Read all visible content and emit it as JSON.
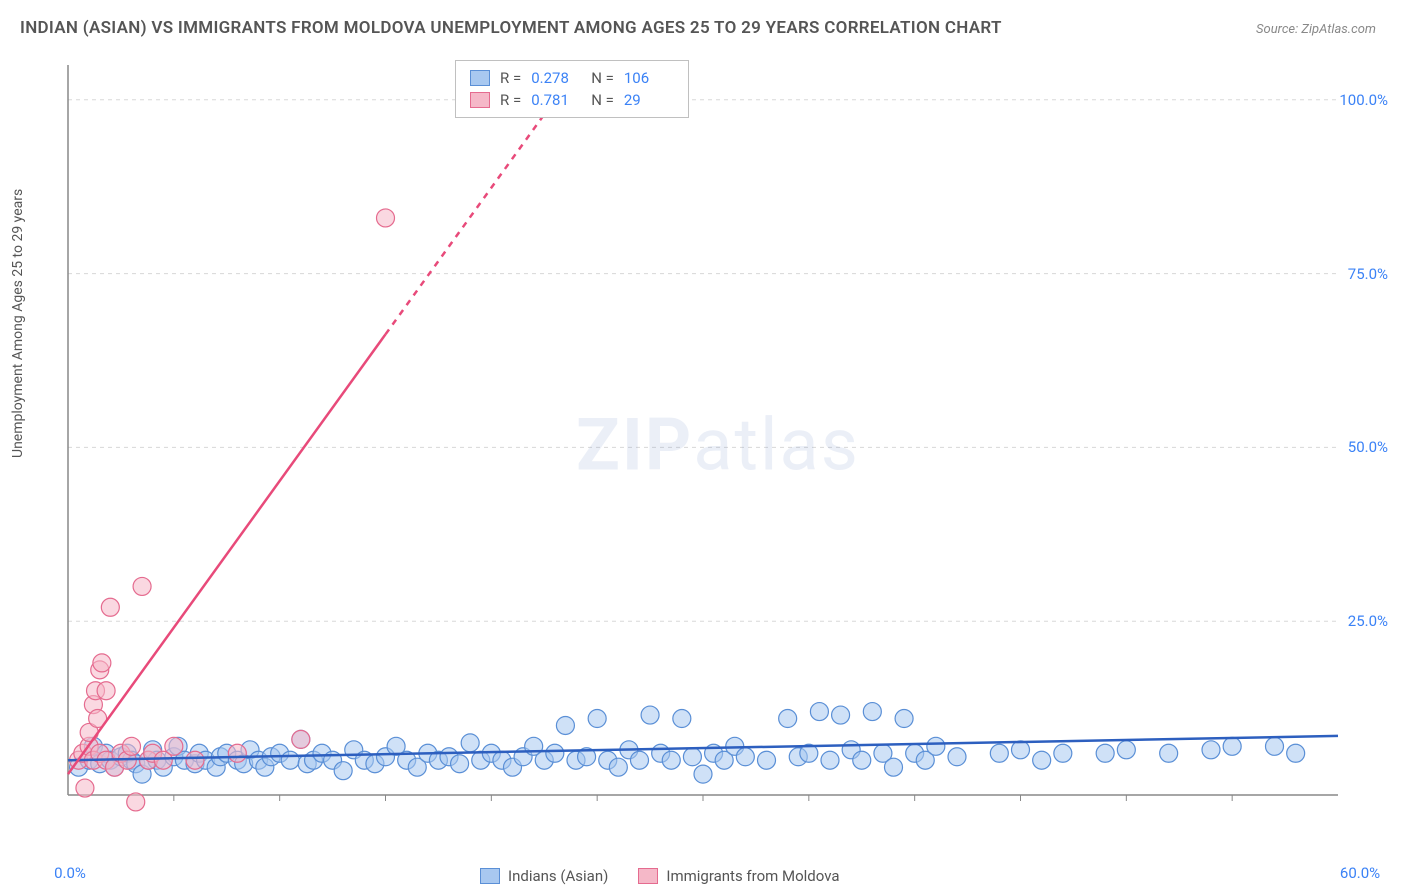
{
  "title": "INDIAN (ASIAN) VS IMMIGRANTS FROM MOLDOVA UNEMPLOYMENT AMONG AGES 25 TO 29 YEARS CORRELATION CHART",
  "source": "Source: ZipAtlas.com",
  "y_axis_label": "Unemployment Among Ages 25 to 29 years",
  "watermark_bold": "ZIP",
  "watermark_light": "atlas",
  "chart": {
    "type": "scatter",
    "xlim": [
      0,
      60
    ],
    "ylim": [
      0,
      105
    ],
    "x_ticks": [
      "0.0%",
      "60.0%"
    ],
    "y_ticks": [
      {
        "v": 25,
        "label": "25.0%"
      },
      {
        "v": 50,
        "label": "50.0%"
      },
      {
        "v": 75,
        "label": "75.0%"
      },
      {
        "v": 100,
        "label": "100.0%"
      }
    ],
    "grid_color": "#d8d8d8",
    "axis_color": "#888888",
    "background_color": "#ffffff",
    "series": [
      {
        "name": "Indians (Asian)",
        "color_fill": "#a8c8f0",
        "color_stroke": "#5a8fd6",
        "marker_radius": 9,
        "marker_opacity": 0.55,
        "R": "0.278",
        "N": "106",
        "trend": {
          "x1": 0,
          "y1": 5,
          "x2": 60,
          "y2": 8.5,
          "color": "#2d5fbf",
          "width": 2.5
        },
        "points": [
          [
            0.5,
            4
          ],
          [
            1,
            5
          ],
          [
            1.2,
            7
          ],
          [
            1.5,
            4.5
          ],
          [
            1.8,
            6
          ],
          [
            2,
            5
          ],
          [
            2.2,
            4
          ],
          [
            2.5,
            5.5
          ],
          [
            2.8,
            6
          ],
          [
            3,
            5
          ],
          [
            3.2,
            4.5
          ],
          [
            3.5,
            3
          ],
          [
            3.8,
            5
          ],
          [
            4,
            6.5
          ],
          [
            4.2,
            5
          ],
          [
            4.5,
            4
          ],
          [
            5,
            5.5
          ],
          [
            5.2,
            7
          ],
          [
            5.5,
            5
          ],
          [
            6,
            4.5
          ],
          [
            6.2,
            6
          ],
          [
            6.5,
            5
          ],
          [
            7,
            4
          ],
          [
            7.2,
            5.5
          ],
          [
            7.5,
            6
          ],
          [
            8,
            5
          ],
          [
            8.3,
            4.5
          ],
          [
            8.6,
            6.5
          ],
          [
            9,
            5
          ],
          [
            9.3,
            4
          ],
          [
            9.6,
            5.5
          ],
          [
            10,
            6
          ],
          [
            10.5,
            5
          ],
          [
            11,
            8
          ],
          [
            11.3,
            4.5
          ],
          [
            11.6,
            5
          ],
          [
            12,
            6
          ],
          [
            12.5,
            5
          ],
          [
            13,
            3.5
          ],
          [
            13.5,
            6.5
          ],
          [
            14,
            5
          ],
          [
            14.5,
            4.5
          ],
          [
            15,
            5.5
          ],
          [
            15.5,
            7
          ],
          [
            16,
            5
          ],
          [
            16.5,
            4
          ],
          [
            17,
            6
          ],
          [
            17.5,
            5
          ],
          [
            18,
            5.5
          ],
          [
            18.5,
            4.5
          ],
          [
            19,
            7.5
          ],
          [
            19.5,
            5
          ],
          [
            20,
            6
          ],
          [
            20.5,
            5
          ],
          [
            21,
            4
          ],
          [
            21.5,
            5.5
          ],
          [
            22,
            7
          ],
          [
            22.5,
            5
          ],
          [
            23,
            6
          ],
          [
            23.5,
            10
          ],
          [
            24,
            5
          ],
          [
            24.5,
            5.5
          ],
          [
            25,
            11
          ],
          [
            25.5,
            5
          ],
          [
            26,
            4
          ],
          [
            26.5,
            6.5
          ],
          [
            27,
            5
          ],
          [
            27.5,
            11.5
          ],
          [
            28,
            6
          ],
          [
            28.5,
            5
          ],
          [
            29,
            11
          ],
          [
            29.5,
            5.5
          ],
          [
            30,
            3
          ],
          [
            30.5,
            6
          ],
          [
            31,
            5
          ],
          [
            31.5,
            7
          ],
          [
            32,
            5.5
          ],
          [
            33,
            5
          ],
          [
            34,
            11
          ],
          [
            34.5,
            5.5
          ],
          [
            35,
            6
          ],
          [
            35.5,
            12
          ],
          [
            36,
            5
          ],
          [
            36.5,
            11.5
          ],
          [
            37,
            6.5
          ],
          [
            37.5,
            5
          ],
          [
            38,
            12
          ],
          [
            38.5,
            6
          ],
          [
            39,
            4
          ],
          [
            39.5,
            11
          ],
          [
            40,
            6
          ],
          [
            40.5,
            5
          ],
          [
            41,
            7
          ],
          [
            42,
            5.5
          ],
          [
            44,
            6
          ],
          [
            45,
            6.5
          ],
          [
            46,
            5
          ],
          [
            47,
            6
          ],
          [
            49,
            6
          ],
          [
            50,
            6.5
          ],
          [
            52,
            6
          ],
          [
            54,
            6.5
          ],
          [
            55,
            7
          ],
          [
            57,
            7
          ],
          [
            58,
            6
          ]
        ]
      },
      {
        "name": "Immigrants from Moldova",
        "color_fill": "#f5b8c8",
        "color_stroke": "#e56b8f",
        "marker_radius": 9,
        "marker_opacity": 0.55,
        "R": "0.781",
        "N": "29",
        "trend": {
          "x1": 0,
          "y1": 3,
          "x2": 23,
          "y2": 100,
          "color": "#e84a7a",
          "width": 2.5,
          "dash_after_x": 15
        },
        "points": [
          [
            0.5,
            5
          ],
          [
            0.7,
            6
          ],
          [
            0.8,
            1
          ],
          [
            1,
            7
          ],
          [
            1,
            9
          ],
          [
            1.2,
            5
          ],
          [
            1.2,
            13
          ],
          [
            1.3,
            15
          ],
          [
            1.4,
            11
          ],
          [
            1.5,
            6
          ],
          [
            1.5,
            18
          ],
          [
            1.6,
            19
          ],
          [
            1.8,
            5
          ],
          [
            1.8,
            15
          ],
          [
            2,
            27
          ],
          [
            2.2,
            4
          ],
          [
            2.5,
            6
          ],
          [
            2.8,
            5
          ],
          [
            3,
            7
          ],
          [
            3.2,
            -1
          ],
          [
            3.5,
            30
          ],
          [
            3.8,
            5
          ],
          [
            4,
            6
          ],
          [
            4.5,
            5
          ],
          [
            5,
            7
          ],
          [
            6,
            5
          ],
          [
            8,
            6
          ],
          [
            11,
            8
          ],
          [
            15,
            83
          ]
        ]
      }
    ]
  },
  "legend_top": [
    {
      "swatch_fill": "#a8c8f0",
      "swatch_stroke": "#5a8fd6",
      "R": "0.278",
      "N": "106"
    },
    {
      "swatch_fill": "#f5b8c8",
      "swatch_stroke": "#e56b8f",
      "R": "0.781",
      "N": "29"
    }
  ],
  "legend_bottom": [
    {
      "swatch_fill": "#a8c8f0",
      "swatch_stroke": "#5a8fd6",
      "label": "Indians (Asian)"
    },
    {
      "swatch_fill": "#f5b8c8",
      "swatch_stroke": "#e56b8f",
      "label": "Immigrants from Moldova"
    }
  ]
}
